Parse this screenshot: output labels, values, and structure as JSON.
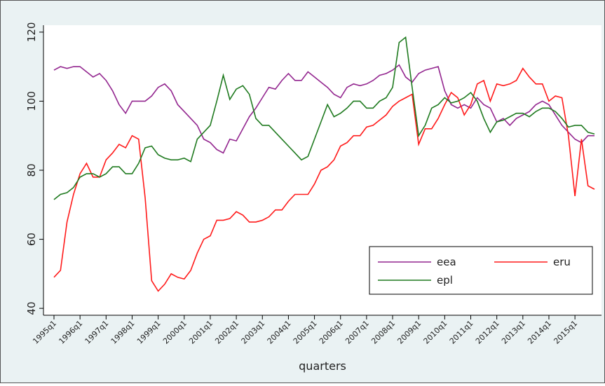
{
  "chart_data": {
    "type": "line",
    "x_label": "quarters",
    "categories": [
      "1995q1",
      null,
      null,
      null,
      "1996q1",
      null,
      null,
      null,
      "1997q1",
      null,
      null,
      null,
      "1998q1",
      null,
      null,
      null,
      "1999q1",
      null,
      null,
      null,
      "2000q1",
      null,
      null,
      null,
      "2001q1",
      null,
      null,
      null,
      "2002q1",
      null,
      null,
      null,
      "2003q1",
      null,
      null,
      null,
      "2004q1",
      null,
      null,
      null,
      "2005q1",
      null,
      null,
      null,
      "2006q1",
      null,
      null,
      null,
      "2007q1",
      null,
      null,
      null,
      "2008q1",
      null,
      null,
      null,
      "2009q1",
      null,
      null,
      null,
      "2010q1",
      null,
      null,
      null,
      "2011q1",
      null,
      null,
      null,
      "2012q1",
      null,
      null,
      null,
      "2013q1",
      null,
      null,
      null,
      "2014q1",
      null,
      null,
      null,
      "2015q1",
      null,
      null,
      null
    ],
    "series": [
      {
        "name": "eea",
        "color": "#93268f",
        "values": [
          109,
          110,
          109.5,
          110,
          110,
          108.5,
          107,
          108,
          106,
          103,
          99,
          96.5,
          100,
          100,
          100,
          101.5,
          104,
          105,
          103,
          99,
          97,
          95,
          93,
          89,
          88,
          86,
          85,
          89,
          88.5,
          92,
          95.5,
          98,
          101,
          104,
          103.5,
          106,
          108,
          106,
          106,
          108.5,
          107,
          105.5,
          104,
          102,
          101,
          104,
          105,
          104.5,
          105,
          106,
          107.5,
          108,
          109,
          110.5,
          107,
          105.5,
          108,
          109,
          109.5,
          110,
          103,
          99,
          98,
          99,
          98,
          101,
          99,
          98,
          94,
          95,
          93,
          95,
          96,
          97,
          99,
          100,
          99,
          96,
          93,
          91,
          89,
          88,
          90,
          90
        ]
      },
      {
        "name": "eru",
        "color": "#ff1a1a",
        "values": [
          49,
          51,
          65,
          73,
          79,
          82,
          78,
          78,
          83,
          85,
          87.5,
          86.5,
          90,
          89,
          72,
          48,
          45,
          47,
          50,
          49,
          48.5,
          51,
          56,
          60,
          61,
          65.5,
          65.5,
          66,
          68,
          67,
          65,
          65,
          65.5,
          66.5,
          68.5,
          68.5,
          71,
          73,
          73,
          73,
          76,
          80,
          81,
          83,
          87,
          88,
          90,
          90,
          92.5,
          93,
          94.5,
          96,
          98.5,
          100,
          101,
          102,
          87.5,
          92,
          92,
          95,
          99,
          102.5,
          101,
          96,
          99,
          105,
          106,
          100,
          105,
          104.5,
          105,
          106,
          109.5,
          107,
          105,
          105,
          100,
          101.5,
          101,
          90,
          72.5,
          89,
          75.5,
          74.5
        ]
      },
      {
        "name": "epl",
        "color": "#1f7a1f",
        "values": [
          71.5,
          73,
          73.5,
          75,
          78,
          79,
          79,
          78,
          79,
          81,
          81,
          79,
          79,
          82,
          86.5,
          87,
          84.5,
          83.5,
          83,
          83,
          83.5,
          82.5,
          89,
          91,
          93,
          100,
          107.5,
          100.5,
          103.5,
          104.5,
          102,
          95,
          93,
          93,
          91,
          89,
          87,
          85,
          83,
          84,
          89,
          94,
          99,
          95.5,
          96.5,
          98,
          100,
          100,
          98,
          98,
          100,
          101,
          104,
          117,
          118.5,
          104,
          90,
          93,
          98,
          99,
          101,
          99.5,
          100,
          101,
          102.5,
          100,
          95,
          91,
          94,
          94.5,
          95.5,
          96.5,
          96.5,
          95.5,
          97,
          98,
          98,
          97,
          95,
          92.5,
          93,
          93,
          91,
          90.5
        ]
      }
    ],
    "ylim": [
      38,
      122
    ],
    "yticks": [
      40,
      60,
      80,
      100,
      120
    ],
    "grid": false,
    "legend": "lower right"
  }
}
